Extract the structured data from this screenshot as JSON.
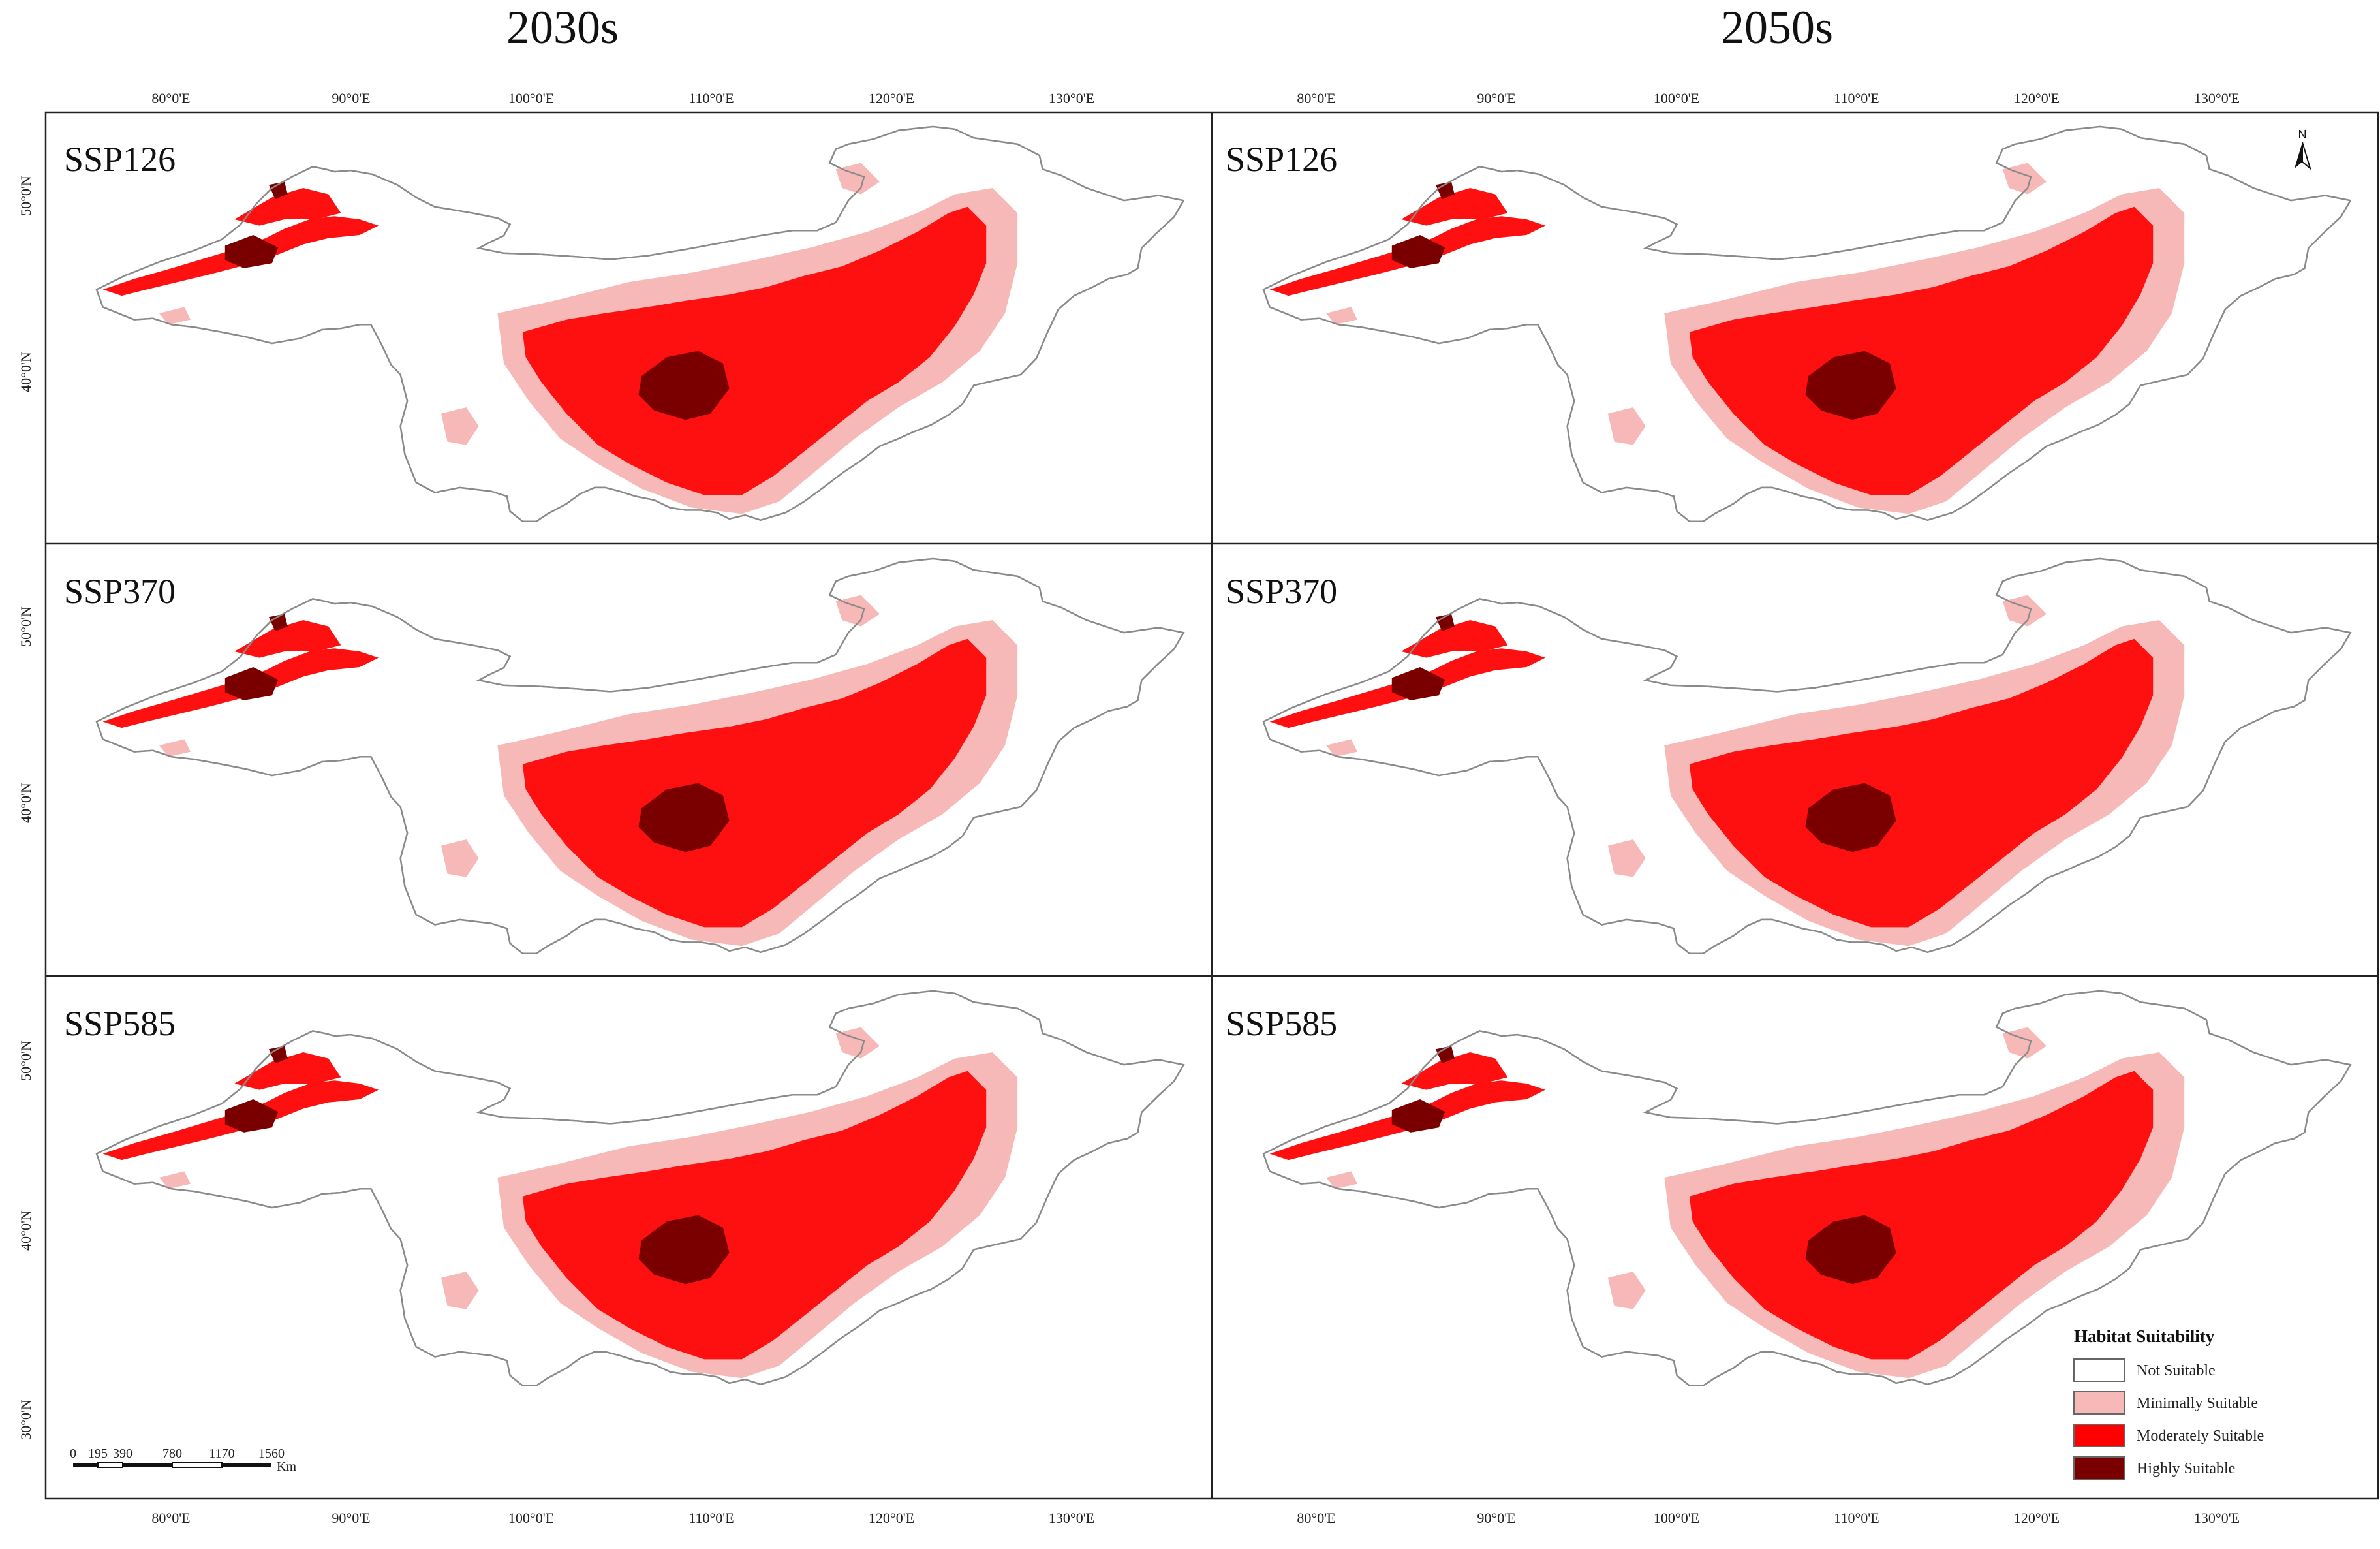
{
  "figure": {
    "period_titles": [
      "2030s",
      "2050s"
    ],
    "scenarios": [
      "SSP126",
      "SSP370",
      "SSP585"
    ],
    "x_tick_labels": [
      "80°0'E",
      "90°0'E",
      "100°0'E",
      "110°0'E",
      "120°0'E",
      "130°0'E"
    ],
    "y_tick_labels": [
      "50°0'N",
      "40°0'N",
      "30°0'N"
    ],
    "north_arrow_label": "N"
  },
  "legend": {
    "title": "Habitat Suitability",
    "classes": [
      {
        "label": "Not Suitable",
        "color": "#ffffff"
      },
      {
        "label": "Minimally Suitable",
        "color": "#f7b8b8"
      },
      {
        "label": "Moderately Suitable",
        "color": "#ff0000"
      },
      {
        "label": "Highly Suitable",
        "color": "#7a0000"
      }
    ]
  },
  "scale_bar": {
    "ticks": [
      "0",
      "195",
      "390",
      "780",
      "1170",
      "1560"
    ],
    "unit": "Km"
  },
  "colors": {
    "boundary": "#8a8a8a",
    "frame": "#222222"
  }
}
